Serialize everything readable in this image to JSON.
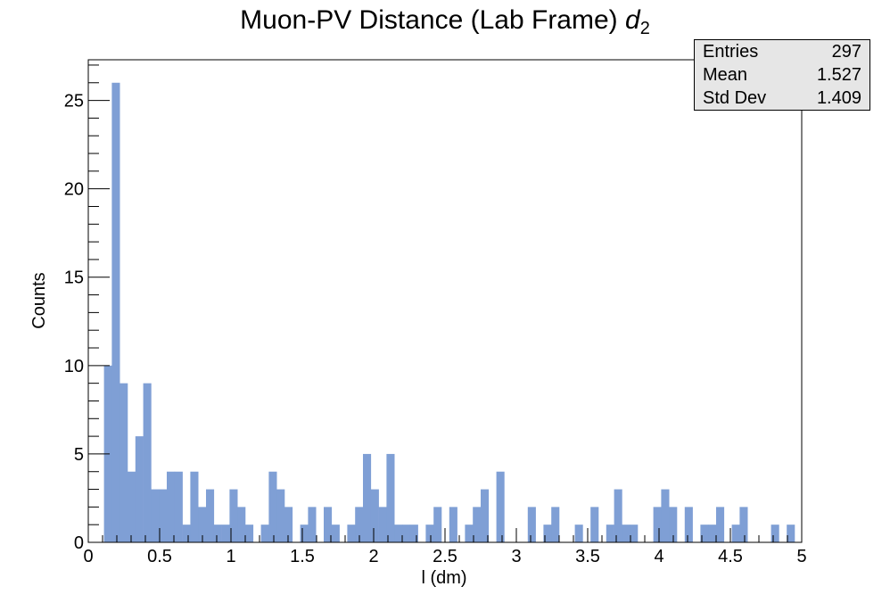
{
  "title_main": "Muon-PV Distance (Lab Frame)",
  "title_var": "d",
  "title_sub": "2",
  "stats": {
    "entries_label": "Entries",
    "entries_value": "297",
    "mean_label": "Mean",
    "mean_value": "1.527",
    "std_label": "Std Dev",
    "std_value": "1.409"
  },
  "chart_data": {
    "type": "bar",
    "title": "Muon-PV Distance (Lab Frame) d2",
    "xlabel": "l (dm)",
    "ylabel": "Counts",
    "bin_width": 0.055,
    "xlim": [
      0,
      5
    ],
    "ylim": [
      0,
      27.3
    ],
    "grid": false,
    "legend": "none",
    "fill_color": "#7f9fd5",
    "x_ticks": [
      0,
      0.5,
      1,
      1.5,
      2,
      2.5,
      3,
      3.5,
      4,
      4.5,
      5
    ],
    "x_tick_labels": [
      "0",
      "0.5",
      "1",
      "1.5",
      "2",
      "2.5",
      "3",
      "3.5",
      "4",
      "4.5",
      "5"
    ],
    "y_ticks": [
      0,
      5,
      10,
      15,
      20,
      25
    ],
    "y_tick_labels": [
      "0",
      "5",
      "10",
      "15",
      "20",
      "25"
    ],
    "bin_starts": [
      0.11,
      0.165,
      0.22,
      0.275,
      0.33,
      0.385,
      0.44,
      0.495,
      0.55,
      0.605,
      0.66,
      0.715,
      0.77,
      0.825,
      0.88,
      0.935,
      0.99,
      1.045,
      1.1,
      1.155,
      1.21,
      1.265,
      1.32,
      1.375,
      1.43,
      1.485,
      1.54,
      1.595,
      1.65,
      1.705,
      1.76,
      1.815,
      1.87,
      1.925,
      1.98,
      2.035,
      2.09,
      2.145,
      2.2,
      2.255,
      2.31,
      2.365,
      2.42,
      2.475,
      2.53,
      2.585,
      2.64,
      2.695,
      2.75,
      2.805,
      2.86,
      2.915,
      2.97,
      3.025,
      3.08,
      3.135,
      3.19,
      3.245,
      3.3,
      3.355,
      3.41,
      3.465,
      3.52,
      3.575,
      3.63,
      3.685,
      3.74,
      3.795,
      3.85,
      3.905,
      3.96,
      4.015,
      4.07,
      4.125,
      4.18,
      4.235,
      4.29,
      4.345,
      4.4,
      4.455,
      4.51,
      4.565,
      4.62,
      4.675,
      4.73,
      4.785,
      4.84,
      4.895,
      4.95
    ],
    "values": [
      10,
      26,
      9,
      4,
      6,
      9,
      3,
      3,
      4,
      4,
      1,
      4,
      2,
      3,
      1,
      1,
      3,
      2,
      1,
      0,
      1,
      4,
      3,
      2,
      0,
      1,
      2,
      0,
      2,
      1,
      0,
      1,
      2,
      5,
      3,
      2,
      5,
      1,
      1,
      1,
      0,
      1,
      2,
      0,
      2,
      0,
      1,
      2,
      3,
      0,
      4,
      0,
      0,
      0,
      2,
      0,
      1,
      2,
      0,
      0,
      1,
      0,
      2,
      0,
      1,
      3,
      1,
      1,
      0,
      0,
      2,
      3,
      2,
      0,
      2,
      0,
      1,
      1,
      2,
      0,
      1,
      2,
      0,
      0,
      0,
      1,
      0,
      1,
      0
    ]
  }
}
